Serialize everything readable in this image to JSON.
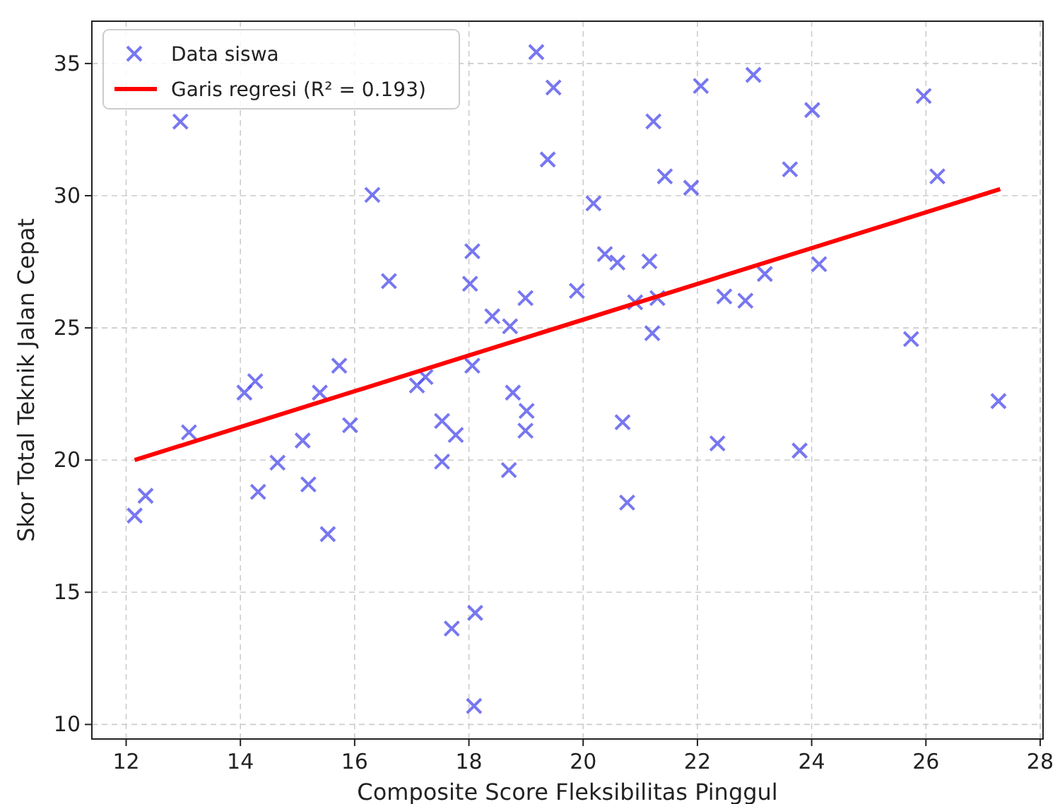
{
  "chart_data": {
    "type": "scatter",
    "xlabel": "Composite Score Fleksibilitas Pinggul",
    "ylabel": "Skor Total Teknik Jalan Cepat",
    "xlim": [
      11.4,
      28.05
    ],
    "ylim": [
      9.45,
      36.6
    ],
    "xticks": [
      12,
      14,
      16,
      18,
      20,
      22,
      24,
      26,
      28
    ],
    "yticks": [
      10,
      15,
      20,
      25,
      30,
      35
    ],
    "grid": true,
    "legend": "top left",
    "series": [
      {
        "name": "Data siswa",
        "marker": "cross",
        "color": "#5555ee",
        "x": [
          12.15,
          12.34,
          12.95,
          13.1,
          14.07,
          14.26,
          14.31,
          14.65,
          15.09,
          15.19,
          15.39,
          15.53,
          15.73,
          15.92,
          16.31,
          16.6,
          17.09,
          17.24,
          17.53,
          17.53,
          17.7,
          17.77,
          18.02,
          18.06,
          18.06,
          18.11,
          18.09,
          18.41,
          18.72,
          18.7,
          18.77,
          18.99,
          19.01,
          18.99,
          19.18,
          19.38,
          19.48,
          19.89,
          20.18,
          20.38,
          20.6,
          20.69,
          20.77,
          20.91,
          21.16,
          21.23,
          21.21,
          21.3,
          21.43,
          21.89,
          22.06,
          22.35,
          22.47,
          22.84,
          22.98,
          23.18,
          23.62,
          23.79,
          24.01,
          24.13,
          25.74,
          25.96,
          26.2,
          27.27
        ],
        "values": [
          17.9,
          18.65,
          32.8,
          21.05,
          22.55,
          22.98,
          18.8,
          19.9,
          20.74,
          19.08,
          22.55,
          17.2,
          23.57,
          21.32,
          30.03,
          26.77,
          22.82,
          23.14,
          21.48,
          19.94,
          13.63,
          20.95,
          26.67,
          23.57,
          27.9,
          14.22,
          10.7,
          25.44,
          25.06,
          19.62,
          22.55,
          26.13,
          21.86,
          21.11,
          35.43,
          31.37,
          34.09,
          26.4,
          29.71,
          27.79,
          27.47,
          21.43,
          18.39,
          25.97,
          27.52,
          32.81,
          24.8,
          26.13,
          30.73,
          30.3,
          34.15,
          20.63,
          26.19,
          26.03,
          34.57,
          27.04,
          31.0,
          20.36,
          33.24,
          27.41,
          24.58,
          33.77,
          30.73,
          22.23
        ]
      },
      {
        "name": "Garis regresi (R² = 0.193)",
        "type": "line",
        "line_style": "solid",
        "color": "#ff0000",
        "x": [
          12.15,
          27.3
        ],
        "values": [
          20.0,
          30.25
        ]
      }
    ]
  }
}
